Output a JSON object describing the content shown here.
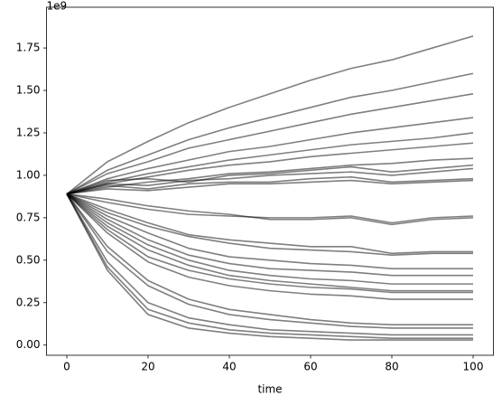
{
  "chart_data": {
    "type": "line",
    "x_label": "time",
    "y_offset_label": "1e9",
    "x": [
      0,
      10,
      20,
      30,
      40,
      50,
      60,
      70,
      80,
      90,
      100
    ],
    "xlim": [
      -5,
      105
    ],
    "xticks": [
      0,
      20,
      40,
      60,
      80,
      100
    ],
    "ylim": [
      -0.06,
      1.99
    ],
    "yticks": [
      {
        "value": 0,
        "label": "0.00"
      },
      {
        "value": 0.25,
        "label": "0.25"
      },
      {
        "value": 0.5,
        "label": "0.50"
      },
      {
        "value": 0.75,
        "label": "0.75"
      },
      {
        "value": 1,
        "label": "1.00"
      },
      {
        "value": 1.25,
        "label": "1.25"
      },
      {
        "value": 1.5,
        "label": "1.50"
      },
      {
        "value": 1.75,
        "label": "1.75"
      }
    ],
    "line_opacity": 0.5,
    "series": [
      {
        "color": "#000000",
        "values": [
          0.89,
          1.08,
          1.2,
          1.31,
          1.4,
          1.48,
          1.56,
          1.63,
          1.68,
          1.75,
          1.82
        ]
      },
      {
        "color": "#000000",
        "values": [
          0.89,
          1.03,
          1.12,
          1.21,
          1.28,
          1.34,
          1.4,
          1.46,
          1.5,
          1.55,
          1.6
        ]
      },
      {
        "color": "#000000",
        "values": [
          0.89,
          1.01,
          1.08,
          1.16,
          1.21,
          1.26,
          1.31,
          1.36,
          1.4,
          1.44,
          1.48
        ]
      },
      {
        "color": "#000000",
        "values": [
          0.89,
          0.98,
          1.04,
          1.09,
          1.14,
          1.17,
          1.21,
          1.25,
          1.28,
          1.31,
          1.34
        ]
      },
      {
        "color": "#000000",
        "values": [
          0.89,
          0.96,
          1.01,
          1.05,
          1.09,
          1.12,
          1.15,
          1.18,
          1.2,
          1.22,
          1.25
        ]
      },
      {
        "color": "#000000",
        "values": [
          0.89,
          0.95,
          0.99,
          1.03,
          1.06,
          1.08,
          1.11,
          1.13,
          1.15,
          1.17,
          1.19
        ]
      },
      {
        "color": "#000000",
        "values": [
          0.89,
          0.93,
          0.96,
          0.98,
          1.01,
          1.02,
          1.04,
          1.06,
          1.07,
          1.09,
          1.1
        ]
      },
      {
        "color": "#000000",
        "values": [
          0.89,
          0.97,
          0.98,
          0.96,
          1.0,
          1.01,
          1.03,
          1.05,
          1.02,
          1.04,
          1.06
        ]
      },
      {
        "color": "#000000",
        "values": [
          0.89,
          0.95,
          0.94,
          0.97,
          0.98,
          1.0,
          1.01,
          1.02,
          1.0,
          1.02,
          1.04
        ]
      },
      {
        "color": "#000000",
        "values": [
          0.89,
          0.94,
          0.92,
          0.95,
          0.96,
          0.96,
          0.98,
          0.99,
          0.96,
          0.97,
          0.98
        ]
      },
      {
        "color": "#000000",
        "values": [
          0.89,
          0.92,
          0.91,
          0.93,
          0.95,
          0.95,
          0.96,
          0.97,
          0.95,
          0.96,
          0.97
        ]
      },
      {
        "color": "#000000",
        "values": [
          0.89,
          0.84,
          0.8,
          0.77,
          0.76,
          0.75,
          0.75,
          0.76,
          0.72,
          0.75,
          0.76
        ]
      },
      {
        "color": "#000000",
        "values": [
          0.89,
          0.86,
          0.82,
          0.79,
          0.77,
          0.74,
          0.74,
          0.75,
          0.71,
          0.74,
          0.75
        ]
      },
      {
        "color": "#000000",
        "values": [
          0.89,
          0.8,
          0.72,
          0.65,
          0.62,
          0.6,
          0.58,
          0.58,
          0.54,
          0.55,
          0.55
        ]
      },
      {
        "color": "#000000",
        "values": [
          0.89,
          0.78,
          0.7,
          0.64,
          0.6,
          0.57,
          0.56,
          0.55,
          0.53,
          0.54,
          0.54
        ]
      },
      {
        "color": "#000000",
        "values": [
          0.89,
          0.76,
          0.66,
          0.57,
          0.52,
          0.5,
          0.48,
          0.47,
          0.45,
          0.45,
          0.45
        ]
      },
      {
        "color": "#000000",
        "values": [
          0.89,
          0.74,
          0.62,
          0.53,
          0.48,
          0.45,
          0.44,
          0.43,
          0.41,
          0.41,
          0.41
        ]
      },
      {
        "color": "#000000",
        "values": [
          0.89,
          0.72,
          0.59,
          0.5,
          0.44,
          0.41,
          0.39,
          0.38,
          0.36,
          0.36,
          0.36
        ]
      },
      {
        "color": "#000000",
        "values": [
          0.89,
          0.7,
          0.56,
          0.47,
          0.41,
          0.38,
          0.36,
          0.34,
          0.32,
          0.32,
          0.32
        ]
      },
      {
        "color": "#000000",
        "values": [
          0.89,
          0.68,
          0.52,
          0.44,
          0.39,
          0.36,
          0.34,
          0.33,
          0.31,
          0.31,
          0.31
        ]
      },
      {
        "color": "#000000",
        "values": [
          0.89,
          0.66,
          0.49,
          0.4,
          0.35,
          0.32,
          0.3,
          0.29,
          0.27,
          0.27,
          0.27
        ]
      },
      {
        "color": "#000000",
        "values": [
          0.89,
          0.58,
          0.38,
          0.27,
          0.21,
          0.18,
          0.15,
          0.13,
          0.12,
          0.12,
          0.12
        ]
      },
      {
        "color": "#000000",
        "values": [
          0.89,
          0.55,
          0.35,
          0.24,
          0.18,
          0.15,
          0.13,
          0.11,
          0.1,
          0.1,
          0.1
        ]
      },
      {
        "color": "#000000",
        "values": [
          0.89,
          0.49,
          0.25,
          0.16,
          0.12,
          0.09,
          0.08,
          0.07,
          0.06,
          0.06,
          0.06
        ]
      },
      {
        "color": "#000000",
        "values": [
          0.89,
          0.46,
          0.21,
          0.13,
          0.09,
          0.07,
          0.06,
          0.05,
          0.04,
          0.04,
          0.04
        ]
      },
      {
        "color": "#000000",
        "values": [
          0.89,
          0.44,
          0.18,
          0.1,
          0.07,
          0.05,
          0.04,
          0.03,
          0.03,
          0.03,
          0.03
        ]
      }
    ]
  }
}
